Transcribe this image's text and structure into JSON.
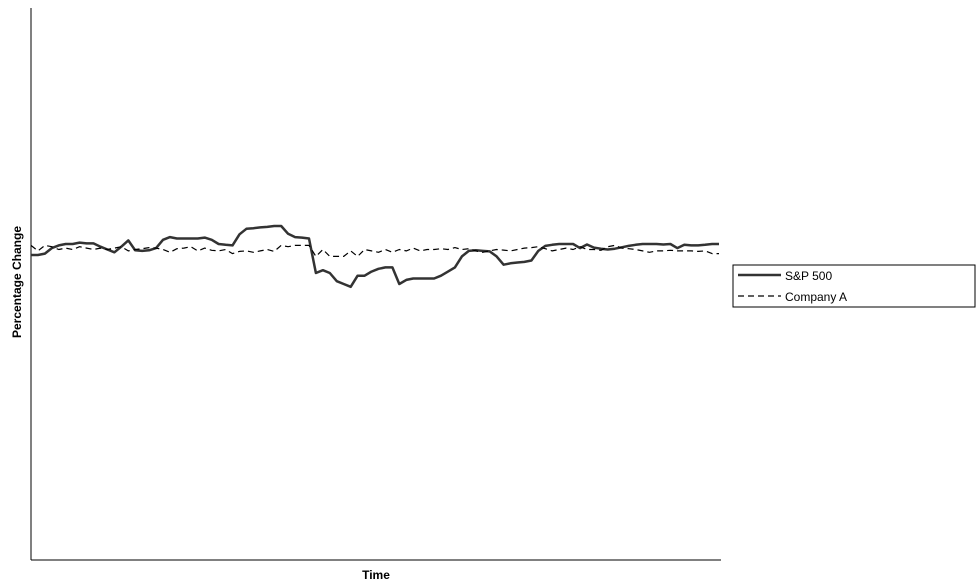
{
  "chart_data": {
    "type": "line",
    "title": "",
    "xlabel": "Time",
    "ylabel": "Percentage Change",
    "ylim": [
      -1,
      1
    ],
    "grid": false,
    "legend_position": "right",
    "colors": {
      "S&P 500": "#333333",
      "Company A": "#000000"
    },
    "series": [
      {
        "name": "S&P 500",
        "style": "solid",
        "x": [
          0,
          1,
          2,
          3,
          4,
          5,
          6,
          7,
          8,
          9,
          10,
          11,
          12,
          13,
          14,
          15,
          16,
          17,
          18,
          19,
          20,
          21,
          22,
          23,
          24,
          25,
          26,
          27,
          28,
          29,
          30,
          31,
          32,
          33,
          34,
          35,
          36,
          37,
          38,
          39,
          40,
          41,
          42,
          43,
          44,
          45,
          46,
          47,
          48,
          49,
          50,
          51,
          52,
          53,
          54,
          55,
          56,
          57,
          58,
          59,
          60,
          61,
          62,
          63,
          64,
          65,
          66,
          67,
          68,
          69,
          70,
          71,
          72,
          73,
          74,
          75,
          76,
          77,
          78,
          79,
          80,
          81,
          82,
          83,
          84,
          85,
          86,
          87,
          88,
          89,
          90,
          91,
          92,
          93,
          94,
          95,
          96,
          97,
          98,
          99
        ],
        "values": [
          0.105,
          0.105,
          0.11,
          0.13,
          0.14,
          0.145,
          0.145,
          0.15,
          0.147,
          0.147,
          0.135,
          0.125,
          0.115,
          0.135,
          0.158,
          0.122,
          0.12,
          0.122,
          0.13,
          0.16,
          0.17,
          0.165,
          0.165,
          0.165,
          0.165,
          0.168,
          0.16,
          0.145,
          0.142,
          0.14,
          0.18,
          0.2,
          0.202,
          0.205,
          0.207,
          0.21,
          0.21,
          0.182,
          0.17,
          0.168,
          0.165,
          0.04,
          0.05,
          0.04,
          0.01,
          0.0,
          -0.01,
          0.03,
          0.03,
          0.045,
          0.055,
          0.06,
          0.06,
          0.0,
          0.015,
          0.02,
          0.02,
          0.02,
          0.02,
          0.03,
          0.045,
          0.06,
          0.1,
          0.12,
          0.122,
          0.12,
          0.118,
          0.1,
          0.07,
          0.075,
          0.078,
          0.08,
          0.085,
          0.12,
          0.138,
          0.142,
          0.145,
          0.145,
          0.145,
          0.13,
          0.143,
          0.132,
          0.128,
          0.125,
          0.128,
          0.133,
          0.138,
          0.142,
          0.145,
          0.145,
          0.145,
          0.143,
          0.145,
          0.13,
          0.142,
          0.14,
          0.14,
          0.142,
          0.145,
          0.145
        ]
      },
      {
        "name": "Company A",
        "style": "dashed",
        "x": [
          0,
          1,
          2,
          3,
          4,
          5,
          6,
          7,
          8,
          9,
          10,
          11,
          12,
          13,
          14,
          15,
          16,
          17,
          18,
          19,
          20,
          21,
          22,
          23,
          24,
          25,
          26,
          27,
          28,
          29,
          30,
          31,
          32,
          33,
          34,
          35,
          36,
          37,
          38,
          39,
          40,
          41,
          42,
          43,
          44,
          45,
          46,
          47,
          48,
          49,
          50,
          51,
          52,
          53,
          54,
          55,
          56,
          57,
          58,
          59,
          60,
          61,
          62,
          63,
          64,
          65,
          66,
          67,
          68,
          69,
          70,
          71,
          72,
          73,
          74,
          75,
          76,
          77,
          78,
          79,
          80,
          81,
          82,
          83,
          84,
          85,
          86,
          87,
          88,
          89,
          90,
          91,
          92,
          93,
          94,
          95,
          96,
          97,
          98,
          99
        ],
        "values": [
          0.14,
          0.12,
          0.14,
          0.135,
          0.125,
          0.13,
          0.125,
          0.135,
          0.13,
          0.125,
          0.13,
          0.125,
          0.13,
          0.135,
          0.12,
          0.125,
          0.128,
          0.132,
          0.13,
          0.125,
          0.115,
          0.128,
          0.13,
          0.135,
          0.12,
          0.13,
          0.122,
          0.12,
          0.125,
          0.11,
          0.118,
          0.12,
          0.115,
          0.12,
          0.125,
          0.118,
          0.14,
          0.135,
          0.14,
          0.14,
          0.14,
          0.1,
          0.125,
          0.1,
          0.1,
          0.1,
          0.12,
          0.1,
          0.125,
          0.12,
          0.115,
          0.125,
          0.115,
          0.125,
          0.12,
          0.13,
          0.12,
          0.125,
          0.125,
          0.128,
          0.125,
          0.132,
          0.125,
          0.128,
          0.12,
          0.115,
          0.12,
          0.125,
          0.123,
          0.12,
          0.125,
          0.13,
          0.132,
          0.135,
          0.128,
          0.12,
          0.125,
          0.13,
          0.125,
          0.135,
          0.125,
          0.125,
          0.122,
          0.135,
          0.14,
          0.13,
          0.128,
          0.125,
          0.12,
          0.115,
          0.12,
          0.12,
          0.122,
          0.12,
          0.12,
          0.12,
          0.118,
          0.12,
          0.11,
          0.11
        ]
      }
    ]
  }
}
